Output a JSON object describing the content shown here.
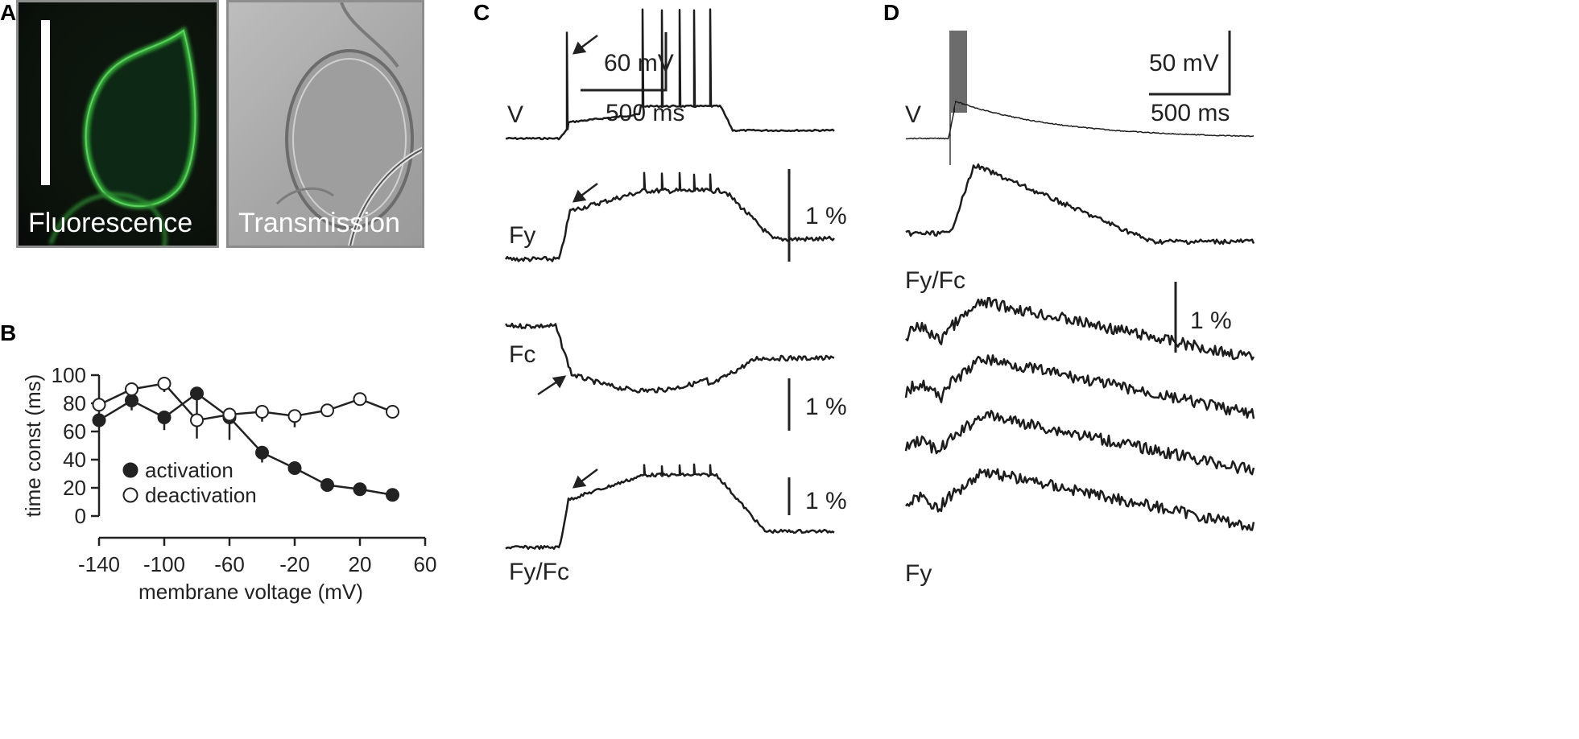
{
  "panels": {
    "A": {
      "letter": "A",
      "fluorescence_label": "Fluorescence",
      "transmission_label": "Transmission",
      "colors": {
        "fluorescence": "#3bbf3f",
        "background": "#0c120c",
        "transmission": "#a9a9a9"
      }
    },
    "B": {
      "letter": "B"
    },
    "C": {
      "letter": "C",
      "trace_labels": [
        "V",
        "Fy",
        "Fc",
        "Fy/Fc"
      ],
      "scale_voltage": "60 mV",
      "scale_time": "500 ms",
      "scale_percent": [
        "1 %",
        "1 %",
        "1 %"
      ]
    },
    "D": {
      "letter": "D",
      "trace_labels": [
        "V",
        "Fy/Fc",
        "Fy"
      ],
      "scale_voltage": "50 mV",
      "scale_time": "500 ms",
      "scale_percent": "1 %"
    }
  },
  "chart_data": {
    "type": "scatter",
    "title": "",
    "xlabel": "membrane voltage (mV)",
    "ylabel": "time const (ms)",
    "xlim": [
      -140,
      60
    ],
    "ylim": [
      0,
      100
    ],
    "xticks": [
      -140,
      -100,
      -60,
      -20,
      20,
      60
    ],
    "yticks": [
      0,
      20,
      40,
      60,
      80,
      100
    ],
    "legend_position": "bottom-left",
    "series": [
      {
        "name": "activation",
        "marker": "filled-circle",
        "x": [
          -140,
          -120,
          -100,
          -80,
          -60,
          -40,
          -20,
          0,
          20,
          40
        ],
        "y": [
          68,
          82,
          70,
          87,
          70,
          45,
          34,
          22,
          19,
          15
        ],
        "error": [
          5,
          7,
          9,
          32,
          16,
          7,
          2,
          1,
          1,
          1
        ]
      },
      {
        "name": "deactivation",
        "marker": "open-circle",
        "x": [
          -140,
          -120,
          -100,
          -80,
          -60,
          -40,
          -20,
          0,
          20,
          40
        ],
        "y": [
          79,
          90,
          94,
          68,
          72,
          74,
          71,
          75,
          83,
          74
        ],
        "error": [
          3,
          3,
          6,
          3,
          5,
          7,
          8,
          3,
          3,
          4
        ]
      }
    ]
  }
}
